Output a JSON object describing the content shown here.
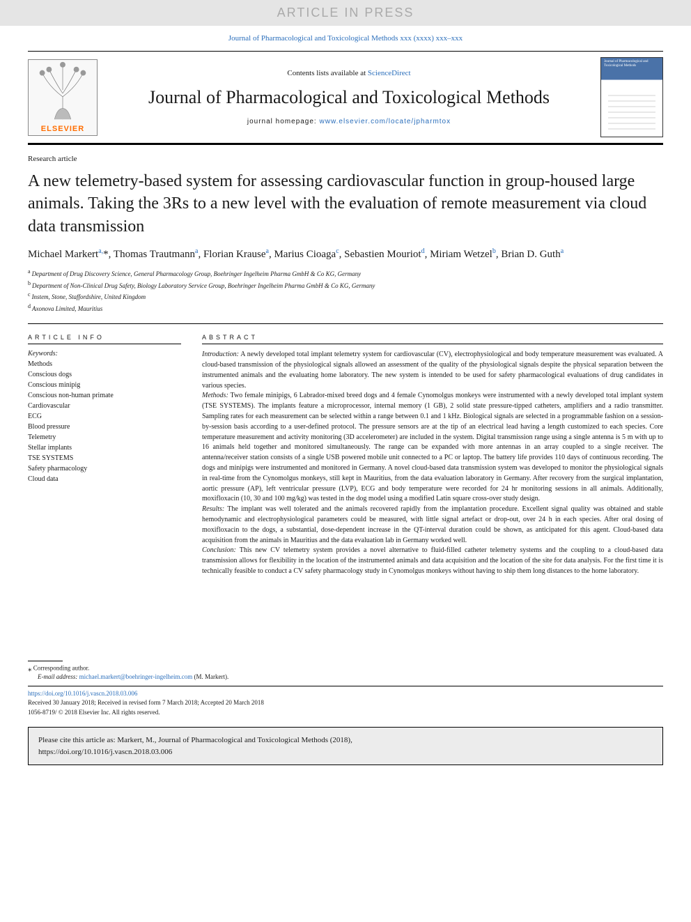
{
  "banner": {
    "text": "ARTICLE IN PRESS"
  },
  "journal_ref": "Journal of Pharmacological and Toxicological Methods xxx (xxxx) xxx–xxx",
  "header": {
    "publisher_name": "ELSEVIER",
    "contents_prefix": "Contents lists available at ",
    "contents_link": "ScienceDirect",
    "journal_title": "Journal of Pharmacological and Toxicological Methods",
    "homepage_label": "journal homepage: ",
    "homepage_url": "www.elsevier.com/locate/jpharmtox",
    "cover_thumb_title": "Journal of Pharmacological and Toxicological Methods"
  },
  "article": {
    "type": "Research article",
    "title": "A new telemetry-based system for assessing cardiovascular function in group-housed large animals. Taking the 3Rs to a new level with the evaluation of remote measurement via cloud data transmission",
    "authors_html": "Michael Markert<sup>a,</sup>*, Thomas Trautmann<sup>a</sup>, Florian Krause<sup>a</sup>, Marius Cioaga<sup>c</sup>, Sebastien Mouriot<sup>d</sup>, Miriam Wetzel<sup>b</sup>, Brian D. Guth<sup>a</sup>",
    "affiliations": {
      "a": "Department of Drug Discovery Science, General Pharmacology Group, Boehringer Ingelheim Pharma GmbH & Co KG, Germany",
      "b": "Department of Non-Clinical Drug Safety, Biology Laboratory Service Group, Boehringer Ingelheim Pharma GmbH & Co KG, Germany",
      "c": "Instem, Stone, Staffordshire, United Kingdom",
      "d": "Axonova Limited, Mauritius"
    }
  },
  "article_info": {
    "section_label": "ARTICLE INFO",
    "keywords_heading": "Keywords:",
    "keywords": [
      "Methods",
      "Conscious dogs",
      "Conscious minipig",
      "Conscious non-human primate",
      "Cardiovascular",
      "ECG",
      "Blood pressure",
      "Telemetry",
      "Stellar implants",
      "TSE SYSTEMS",
      "Safety pharmacology",
      "Cloud data"
    ]
  },
  "abstract": {
    "section_label": "ABSTRACT",
    "sections": {
      "introduction": {
        "heading": "Introduction:",
        "text": " A newly developed total implant telemetry system for cardiovascular (CV), electrophysiological and body temperature measurement was evaluated. A cloud-based transmission of the physiological signals allowed an assessment of the quality of the physiological signals despite the physical separation between the instrumented animals and the evaluating home laboratory. The new system is intended to be used for safety pharmacological evaluations of drug candidates in various species."
      },
      "methods": {
        "heading": "Methods:",
        "text": " Two female minipigs, 6 Labrador-mixed breed dogs and 4 female Cynomolgus monkeys were instrumented with a newly developed total implant system (TSE SYSTEMS). The implants feature a microprocessor, internal memory (1 GB), 2 solid state pressure-tipped catheters, amplifiers and a radio transmitter. Sampling rates for each measurement can be selected within a range between 0.1 and 1 kHz. Biological signals are selected in a programmable fashion on a session-by-session basis according to a user-defined protocol. The pressure sensors are at the tip of an electrical lead having a length customized to each species. Core temperature measurement and activity monitoring (3D accelerometer) are included in the system. Digital transmission range using a single antenna is 5 m with up to 16 animals held together and monitored simultaneously. The range can be expanded with more antennas in an array coupled to a single receiver. The antenna/receiver station consists of a single USB powered mobile unit connected to a PC or laptop. The battery life provides 110 days of continuous recording. The dogs and minipigs were instrumented and monitored in Germany. A novel cloud-based data transmission system was developed to monitor the physiological signals in real-time from the Cynomolgus monkeys, still kept in Mauritius, from the data evaluation laboratory in Germany. After recovery from the surgical implantation, aortic pressure (AP), left ventricular pressure (LVP), ECG and body temperature were recorded for 24 hr monitoring sessions in all animals. Additionally, moxifloxacin (10, 30 and 100 mg/kg) was tested in the dog model using a modified Latin square cross-over study design."
      },
      "results": {
        "heading": "Results:",
        "text": " The implant was well tolerated and the animals recovered rapidly from the implantation procedure. Excellent signal quality was obtained and stable hemodynamic and electrophysiological parameters could be measured, with little signal artefact or drop-out, over 24 h in each species. After oral dosing of moxifloxacin to the dogs, a substantial, dose-dependent increase in the QT-interval duration could be shown, as anticipated for this agent. Cloud-based data acquisition from the animals in Mauritius and the data evaluation lab in Germany worked well."
      },
      "conclusion": {
        "heading": "Conclusion:",
        "text": " This new CV telemetry system provides a novel alternative to fluid-filled catheter telemetry systems and the coupling to a cloud-based data transmission allows for flexibility in the location of the instrumented animals and data acquisition and the location of the site for data analysis. For the first time it is technically feasible to conduct a CV safety pharmacology study in Cynomolgus monkeys without having to ship them long distances to the home laboratory."
      }
    }
  },
  "footer": {
    "corresponding_marker": "⁎",
    "corresponding_text": " Corresponding author.",
    "email_label": "E-mail address: ",
    "email": "michael.markert@boehringer-ingelheim.com",
    "email_suffix": " (M. Markert).",
    "doi": "https://doi.org/10.1016/j.vascn.2018.03.006",
    "received": "Received 30 January 2018; Received in revised form 7 March 2018; Accepted 20 March 2018",
    "issn_line": "1056-8719/ © 2018 Elsevier Inc. All rights reserved."
  },
  "citebox": {
    "line1": "Please cite this article as: Markert, M., Journal of Pharmacological and Toxicological Methods (2018),",
    "line2": "https://doi.org/10.1016/j.vascn.2018.03.006"
  },
  "colors": {
    "link": "#2a6ebb",
    "banner_bg": "#e5e5e5",
    "banner_fg": "#aaaaaa",
    "publisher_orange": "#ff6d00"
  }
}
